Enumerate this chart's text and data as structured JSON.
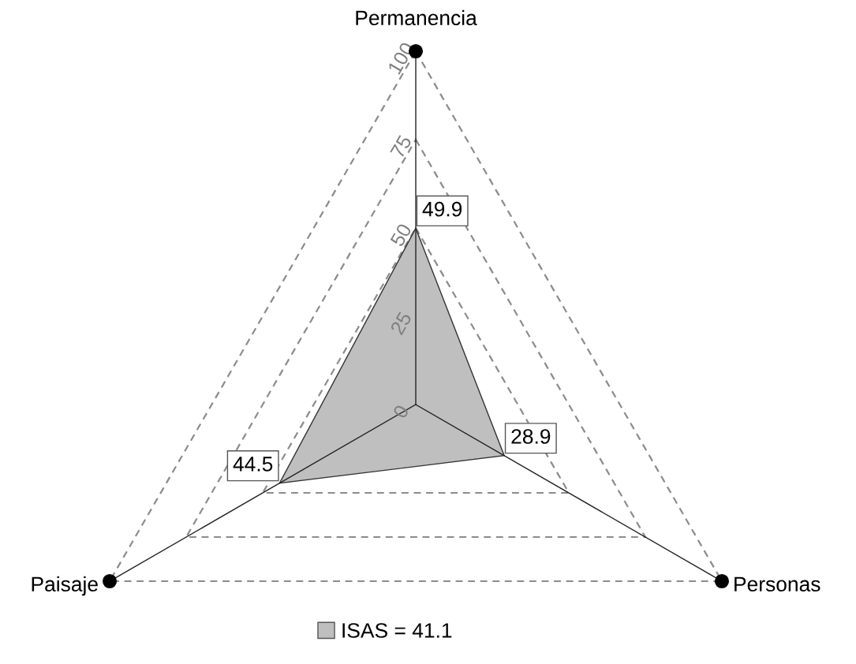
{
  "chart_data": {
    "type": "radar",
    "categories": [
      "Permanencia",
      "Personas",
      "Paisaje"
    ],
    "series": [
      {
        "name": "ISAS = 41.1",
        "color": "#bfbfbf",
        "values": [
          49.9,
          28.9,
          44.5
        ]
      }
    ],
    "ylim": [
      0,
      100
    ],
    "yticks": [
      0,
      25,
      50,
      75,
      100
    ],
    "grid": true,
    "data_labels": true,
    "legend": "bottom"
  }
}
